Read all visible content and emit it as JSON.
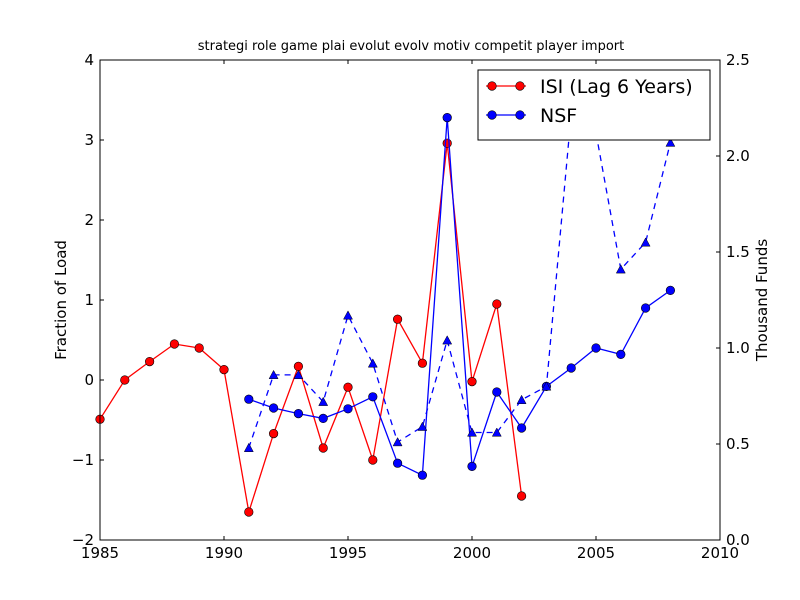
{
  "chart_data": {
    "type": "line",
    "title": "strategi role game plai evolut evolv motiv competit player import",
    "ylabel": "Fraction of Load",
    "ylabel_right": "Thousand Funds",
    "xlim": [
      1985,
      2010
    ],
    "ylim": [
      -2,
      4
    ],
    "ylim_right": [
      0,
      2.5
    ],
    "x_ticks": [
      "1985",
      "1990",
      "1995",
      "2000",
      "2005",
      "2010"
    ],
    "y_ticks": [
      "−2",
      "−1",
      "0",
      "1",
      "2",
      "3",
      "4"
    ],
    "y_ticks_right": [
      "0.0",
      "0.5",
      "1.0",
      "1.5",
      "2.0",
      "2.5"
    ],
    "legend_position": "top-right",
    "grid": false,
    "series": [
      {
        "name": "ISI (Lag 6 Years)",
        "axis": "left",
        "color": "#ff0000",
        "marker": "circle",
        "line": "solid",
        "x": [
          1985,
          1986,
          1987,
          1988,
          1989,
          1990,
          1991,
          1992,
          1993,
          1994,
          1995,
          1996,
          1997,
          1998,
          1999,
          2000,
          2001,
          2002
        ],
        "y": [
          -0.49,
          0.0,
          0.23,
          0.45,
          0.4,
          0.13,
          -1.65,
          -0.67,
          0.17,
          -0.85,
          -0.09,
          -1.0,
          0.76,
          0.21,
          2.96,
          -0.02,
          0.95,
          -1.45
        ]
      },
      {
        "name": "NSF",
        "axis": "left",
        "color": "#0000ff",
        "marker": "circle",
        "line": "solid",
        "x": [
          1991,
          1992,
          1993,
          1994,
          1995,
          1996,
          1997,
          1998,
          1999,
          2000,
          2001,
          2002,
          2003,
          2004,
          2005,
          2006,
          2007,
          2008
        ],
        "y": [
          -0.24,
          -0.35,
          -0.42,
          -0.48,
          -0.36,
          -0.21,
          -1.04,
          -1.19,
          3.28,
          -1.08,
          -0.15,
          -0.6,
          -0.08,
          0.15,
          0.4,
          0.32,
          0.9,
          1.12
        ]
      },
      {
        "name": "",
        "axis": "right",
        "color": "#0000ff",
        "marker": "triangle",
        "line": "dashed",
        "x": [
          1991,
          1992,
          1993,
          1994,
          1995,
          1996,
          1997,
          1998,
          1999,
          2000,
          2001,
          2002,
          2003,
          2004,
          2005,
          2006,
          2007,
          2008
        ],
        "y": [
          0.48,
          0.86,
          0.86,
          0.72,
          1.17,
          0.92,
          0.51,
          0.59,
          1.04,
          0.56,
          0.56,
          0.73,
          0.8,
          2.22,
          2.12,
          1.41,
          1.55,
          2.07
        ]
      }
    ]
  }
}
